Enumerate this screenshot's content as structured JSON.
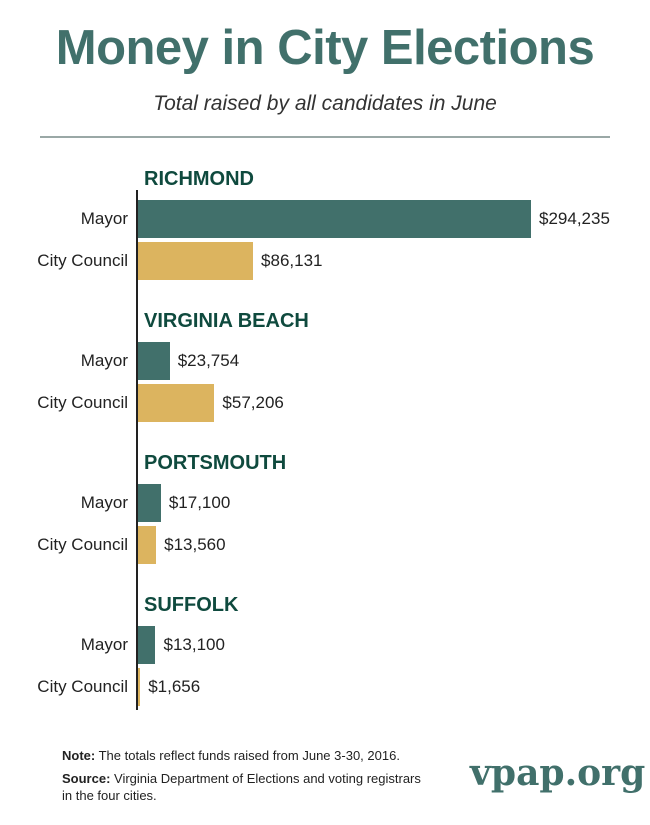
{
  "colors": {
    "mayor": "#41706b",
    "council": "#dcb45f",
    "title": "#41706b"
  },
  "chart_data": {
    "type": "bar",
    "title": "Money in City Elections",
    "subtitle": "Total raised by all candidates in June",
    "xlim": [
      0,
      294235
    ],
    "groups": [
      {
        "name": "RICHMOND",
        "bars": [
          {
            "label": "Mayor",
            "value": 294235,
            "display": "$294,235"
          },
          {
            "label": "City Council",
            "value": 86131,
            "display": "$86,131"
          }
        ]
      },
      {
        "name": "VIRGINIA BEACH",
        "bars": [
          {
            "label": "Mayor",
            "value": 23754,
            "display": "$23,754"
          },
          {
            "label": "City Council",
            "value": 57206,
            "display": "$57,206"
          }
        ]
      },
      {
        "name": "PORTSMOUTH",
        "bars": [
          {
            "label": "Mayor",
            "value": 17100,
            "display": "$17,100"
          },
          {
            "label": "City Council",
            "value": 13560,
            "display": "$13,560"
          }
        ]
      },
      {
        "name": "SUFFOLK",
        "bars": [
          {
            "label": "Mayor",
            "value": 13100,
            "display": "$13,100"
          },
          {
            "label": "City Council",
            "value": 1656,
            "display": "$1,656"
          }
        ]
      }
    ]
  },
  "footer": {
    "note_label": "Note:",
    "note_text": " The totals reflect funds raised from June 3-30, 2016.",
    "source_label": "Source:",
    "source_text": " Virginia Department of Elections and voting registrars",
    "source_text2": "in the four cities.",
    "logo": "vpap.org"
  }
}
